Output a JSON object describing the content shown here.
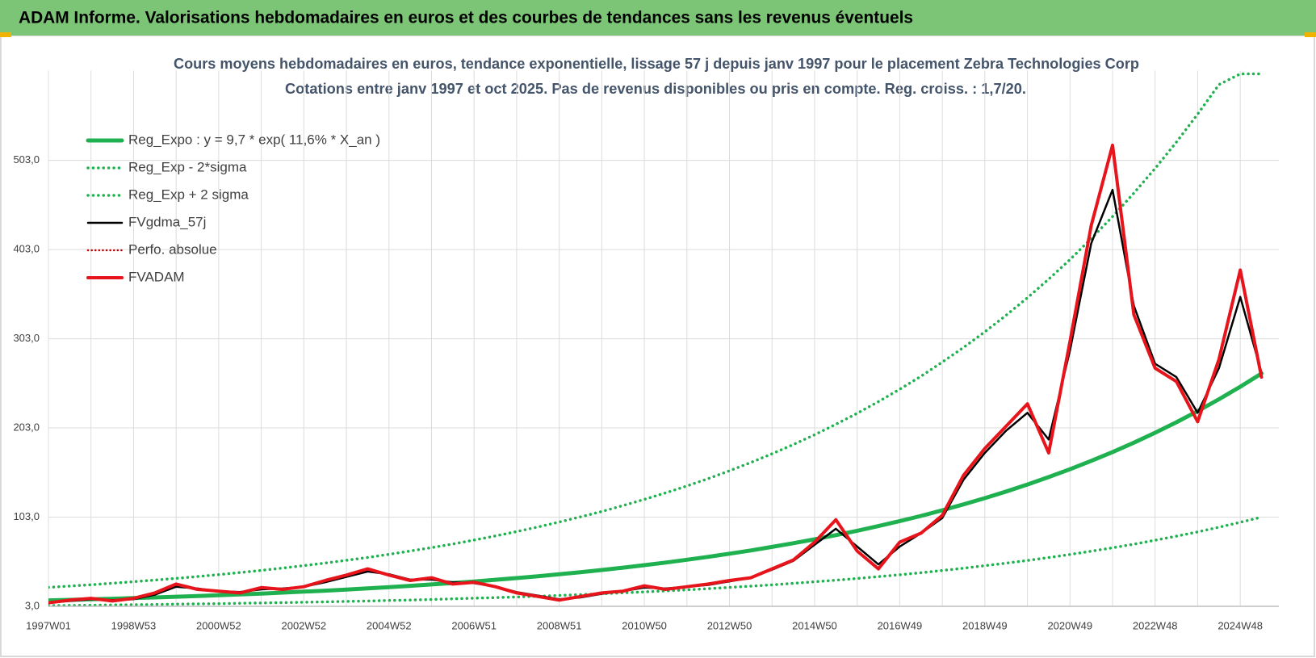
{
  "header": {
    "title": "ADAM Informe. Valorisations hebdomadaires en euros et des courbes de tendances sans les revenus éventuels"
  },
  "chart_data": {
    "type": "line",
    "title": "Cours moyens hebdomadaires en euros, tendance exponentielle, lissage 57 j depuis janv 1997 pour le placement Zebra Technologies Corp",
    "subtitle": "Cotations entre janv 1997 et oct 2025. Pas de revenus disponibles ou pris en compte. Reg. croiss. : 1,7/20.",
    "categories": [
      "1997W01",
      null,
      null,
      null,
      "1998W53",
      null,
      null,
      null,
      "2000W52",
      null,
      null,
      null,
      "2002W52",
      null,
      null,
      null,
      "2004W52",
      null,
      null,
      null,
      "2006W51",
      null,
      null,
      null,
      "2008W51",
      null,
      null,
      null,
      "2010W50",
      null,
      null,
      null,
      "2012W50",
      null,
      null,
      null,
      "2014W50",
      null,
      null,
      null,
      "2016W49",
      null,
      null,
      null,
      "2018W49",
      null,
      null,
      null,
      "2020W49",
      null,
      null,
      null,
      "2022W48",
      null,
      null,
      null,
      "2024W48",
      null
    ],
    "ylim": [
      3,
      600
    ],
    "yticks": [
      {
        "value": 3,
        "label": "3,0"
      },
      {
        "value": 103,
        "label": "103,0"
      },
      {
        "value": 203,
        "label": "203,0"
      },
      {
        "value": 303,
        "label": "303,0"
      },
      {
        "value": 403,
        "label": "403,0"
      },
      {
        "value": 503,
        "label": "503,0"
      }
    ],
    "grid": true,
    "legend": "upper-left",
    "series": [
      {
        "name": "Reg_Expo : y = 9,7 * exp( 11,6% *  X_an )",
        "color": "#1fb14f",
        "line_style": "solid",
        "width": 5,
        "values": [
          9.7,
          10.28,
          10.89,
          11.54,
          12.23,
          12.96,
          13.73,
          14.55,
          15.42,
          16.34,
          17.31,
          18.35,
          19.44,
          20.6,
          21.83,
          23.13,
          24.51,
          25.98,
          27.53,
          29.17,
          30.91,
          32.76,
          34.71,
          36.79,
          38.98,
          41.31,
          43.77,
          46.39,
          49.15,
          52.09,
          55.2,
          58.49,
          61.98,
          65.68,
          69.6,
          73.76,
          78.16,
          82.83,
          87.77,
          93.01,
          98.56,
          104.4,
          110.7,
          117.3,
          124.3,
          131.7,
          139.6,
          147.9,
          156.7,
          166.1,
          176,
          186.5,
          197.6,
          209.4,
          221.9,
          235.2,
          249.2,
          264.1
        ]
      },
      {
        "name": "Reg_Exp - 2*sigma",
        "color": "#1fb14f",
        "line_style": "dotted",
        "width": 3.5,
        "values": [
          3.8,
          4,
          4.2,
          4.5,
          4.8,
          5.1,
          5.4,
          5.7,
          6,
          6.4,
          6.8,
          7.2,
          7.6,
          8,
          8.5,
          9,
          9.6,
          10.1,
          10.7,
          11.4,
          12.1,
          12.8,
          13.5,
          14.3,
          15.2,
          16.1,
          17.1,
          18.1,
          19.2,
          20.3,
          21.5,
          22.8,
          24.2,
          25.6,
          27.1,
          28.8,
          30.5,
          32.3,
          34.2,
          36.3,
          38.4,
          40.7,
          43.2,
          45.7,
          48.5,
          51.4,
          54.4,
          57.7,
          61.1,
          64.8,
          68.6,
          72.7,
          77.1,
          81.7,
          86.5,
          91.7,
          97.2,
          103
        ]
      },
      {
        "name": "Reg_Exp + 2 sigma",
        "color": "#1fb14f",
        "line_style": "dotted",
        "width": 3.5,
        "values": [
          24.3,
          25.7,
          27.2,
          28.9,
          30.6,
          32.4,
          34.3,
          36.4,
          38.6,
          40.9,
          43.3,
          45.9,
          48.6,
          51.5,
          54.6,
          57.8,
          61.3,
          65,
          68.8,
          72.9,
          77.3,
          81.9,
          86.8,
          92,
          97.5,
          103.3,
          109.4,
          116,
          122.9,
          130.2,
          138,
          146.2,
          155,
          164.2,
          174,
          184.4,
          195.4,
          207.1,
          219.4,
          232.5,
          246.4,
          261,
          276.8,
          293.3,
          310.8,
          329.3,
          349,
          369.8,
          391.8,
          415.3,
          440,
          466.3,
          494,
          523.5,
          554.8,
          588,
          600,
          600
        ]
      },
      {
        "name": "FVgdma_57j",
        "color": "#000000",
        "line_style": "solid",
        "width": 2.5,
        "values": [
          7,
          9,
          11,
          10,
          11,
          16,
          25,
          23,
          20,
          19,
          22,
          23,
          25,
          30,
          36,
          42,
          39,
          33,
          33,
          30,
          29,
          25,
          19,
          15,
          11,
          13,
          17,
          20,
          24,
          23,
          25,
          27,
          31,
          35,
          44,
          54,
          72,
          90,
          70,
          50,
          70,
          85,
          102,
          145,
          175,
          200,
          220,
          190,
          290,
          410,
          470,
          340,
          275,
          260,
          220,
          270,
          350,
          265
        ]
      },
      {
        "name": "Perfo. absolue",
        "color": "#c00000",
        "line_style": "dotted",
        "width": 2.5,
        "values": [
          7,
          10,
          12,
          9,
          12,
          18,
          28,
          22,
          20,
          18,
          24,
          22,
          25,
          32,
          38,
          45,
          38,
          32,
          35,
          28,
          30,
          25,
          18,
          14,
          10,
          14,
          18,
          20,
          26,
          22,
          25,
          28,
          32,
          35,
          45,
          55,
          75,
          100,
          65,
          45,
          75,
          85,
          105,
          150,
          180,
          205,
          230,
          175,
          300,
          430,
          520,
          330,
          270,
          255,
          210,
          280,
          380,
          260
        ]
      },
      {
        "name": "FVADAM",
        "color": "#e8141b",
        "line_style": "solid",
        "width": 4,
        "values": [
          7,
          10,
          12,
          9,
          12,
          18,
          28,
          22,
          20,
          18,
          24,
          22,
          25,
          32,
          38,
          45,
          38,
          32,
          35,
          28,
          30,
          25,
          18,
          14,
          10,
          14,
          18,
          20,
          26,
          22,
          25,
          28,
          32,
          35,
          45,
          55,
          75,
          100,
          65,
          45,
          75,
          85,
          105,
          150,
          180,
          205,
          230,
          175,
          300,
          430,
          520,
          330,
          270,
          255,
          210,
          280,
          380,
          260
        ]
      }
    ]
  }
}
